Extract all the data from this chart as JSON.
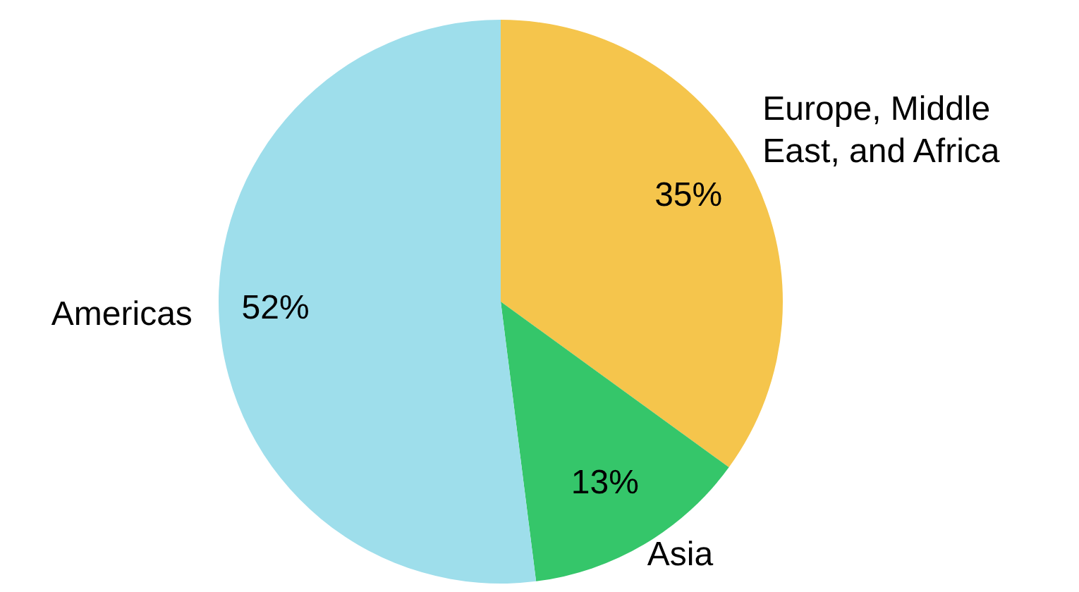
{
  "chart_data": {
    "type": "pie",
    "categories": [
      "Europe, Middle East, and Africa",
      "Asia",
      "Americas"
    ],
    "values": [
      35,
      13,
      52
    ],
    "colors": [
      "#f5c54c",
      "#35c66a",
      "#9edeeb"
    ],
    "value_labels": [
      "35%",
      "13%",
      "52%"
    ]
  }
}
